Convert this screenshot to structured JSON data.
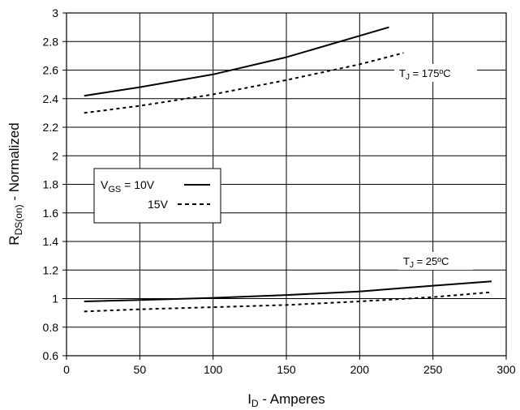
{
  "chart_data": {
    "type": "line",
    "xlabel": {
      "main": "I",
      "sub": "D",
      "rest": " - Amperes"
    },
    "ylabel": {
      "main": "R",
      "sub": "DS(on)",
      "rest": " - Normalized"
    },
    "xlim": [
      0,
      300
    ],
    "ylim": [
      0.6,
      3
    ],
    "xticks": [
      0,
      50,
      100,
      150,
      200,
      250,
      300
    ],
    "yticks": [
      0.6,
      0.8,
      1,
      1.2,
      1.4,
      1.6,
      1.8,
      2,
      2.2,
      2.4,
      2.6,
      2.8,
      3
    ],
    "xtick_labels": [
      "0",
      "50",
      "100",
      "150",
      "200",
      "250",
      "300"
    ],
    "ytick_labels": [
      "0.6",
      "0.8",
      "1",
      "1.2",
      "1.4",
      "1.6",
      "1.8",
      "2",
      "2.2",
      "2.4",
      "2.6",
      "2.8",
      "3"
    ],
    "grid": true,
    "series": [
      {
        "name": "10V",
        "style": "solid",
        "group": "175",
        "x": [
          12,
          50,
          100,
          150,
          200,
          220
        ],
        "y": [
          2.42,
          2.48,
          2.57,
          2.69,
          2.84,
          2.9
        ]
      },
      {
        "name": "15V",
        "style": "dashed",
        "group": "175",
        "x": [
          12,
          50,
          100,
          150,
          200,
          230
        ],
        "y": [
          2.3,
          2.35,
          2.43,
          2.53,
          2.64,
          2.72
        ]
      },
      {
        "name": "10V",
        "style": "solid",
        "group": "25",
        "x": [
          12,
          50,
          100,
          150,
          200,
          250,
          290
        ],
        "y": [
          0.98,
          0.99,
          1.005,
          1.025,
          1.05,
          1.09,
          1.12
        ]
      },
      {
        "name": "15V",
        "style": "dashed",
        "group": "25",
        "x": [
          12,
          50,
          100,
          150,
          200,
          250,
          290
        ],
        "y": [
          0.91,
          0.925,
          0.94,
          0.955,
          0.98,
          1.01,
          1.045
        ]
      }
    ],
    "annotations": [
      {
        "id": "tj175",
        "main": "T",
        "sub": "J",
        "rest": " = 175ºC"
      },
      {
        "id": "tj25",
        "main": "T",
        "sub": "J",
        "rest": " = 25ºC"
      }
    ],
    "legend": {
      "placement": "left-middle",
      "title_main": "V",
      "title_sub": "GS",
      "title_rest": " = 10V",
      "second_label": "15V"
    },
    "colors": {
      "line": "#000000",
      "grid": "#000000",
      "background": "#ffffff"
    }
  }
}
